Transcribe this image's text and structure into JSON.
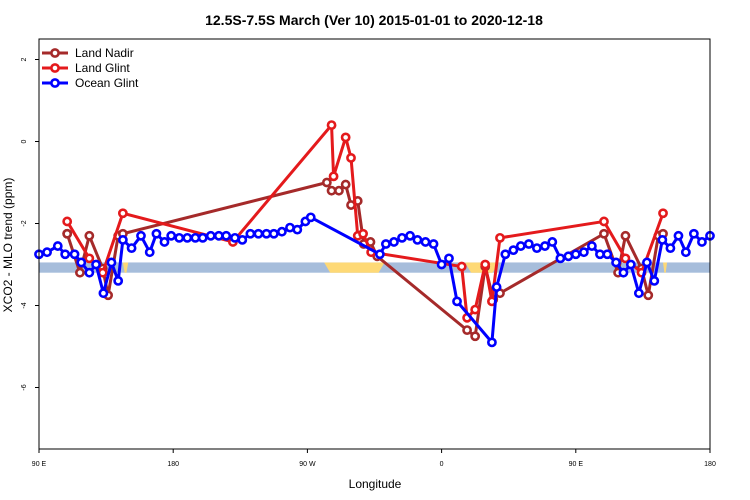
{
  "chart_data": {
    "type": "line",
    "title": "12.5S-7.5S March (Ver 10)   2015-01-01 to 2020-12-18",
    "xlabel": "Longitude",
    "ylabel": "XCO2 - MLO trend (ppm)",
    "xlim": [
      0,
      100
    ],
    "ylim": [
      -7.5,
      2.5
    ],
    "x_ticks": [
      {
        "x": 0,
        "label": "90 E"
      },
      {
        "x": 20,
        "label": "180"
      },
      {
        "x": 40,
        "label": "90 W"
      },
      {
        "x": 60,
        "label": "0"
      },
      {
        "x": 80,
        "label": "90 E"
      },
      {
        "x": 100,
        "label": "180"
      }
    ],
    "y_ticks": [
      {
        "y": 2,
        "label": "2"
      },
      {
        "y": 0,
        "label": "0"
      },
      {
        "y": -2,
        "label": "-2"
      },
      {
        "y": -4,
        "label": "-4"
      },
      {
        "y": -6,
        "label": "-6"
      }
    ],
    "legend_position": "top-left",
    "land_band": {
      "y_range": [
        -3.2,
        -2.95
      ],
      "ocean_color": "#a6bddb",
      "land_color": "#fed976",
      "land_segments": [
        [
          42.5,
          51.5
        ],
        [
          63.5,
          68.5
        ],
        [
          12.5,
          13.3
        ],
        [
          93.0,
          93.6
        ]
      ]
    },
    "series": [
      {
        "name": "Land Nadir",
        "color": "#a52a2a",
        "points": [
          [
            4.2,
            -2.25
          ],
          [
            4.2,
            -2.25
          ],
          [
            6.1,
            -3.2
          ],
          [
            7.5,
            -2.3
          ],
          [
            9.5,
            -3.1
          ],
          [
            10.3,
            -3.75
          ],
          [
            11.8,
            -2.3
          ],
          [
            12.5,
            -2.25
          ],
          [
            42.9,
            -1.0
          ],
          [
            43.6,
            -1.2
          ],
          [
            44.7,
            -1.2
          ],
          [
            45.7,
            -1.05
          ],
          [
            46.5,
            -1.55
          ],
          [
            47.5,
            -1.45
          ],
          [
            48.4,
            -2.5
          ],
          [
            49.4,
            -2.45
          ],
          [
            50.4,
            -2.8
          ],
          [
            63.8,
            -4.6
          ],
          [
            65.0,
            -4.75
          ],
          [
            66.5,
            -3.05
          ],
          [
            67.7,
            -3.85
          ],
          [
            68.7,
            -3.7
          ],
          [
            84.2,
            -2.25
          ],
          [
            86.3,
            -3.2
          ],
          [
            87.4,
            -2.3
          ],
          [
            89.8,
            -3.1
          ],
          [
            90.8,
            -3.75
          ],
          [
            92.3,
            -2.3
          ],
          [
            93.0,
            -2.25
          ]
        ]
      },
      {
        "name": "Land Glint",
        "color": "#e41a1c",
        "points": [
          [
            4.2,
            -1.95
          ],
          [
            7.5,
            -2.85
          ],
          [
            9.5,
            -3.2
          ],
          [
            12.5,
            -1.75
          ],
          [
            28.9,
            -2.45
          ],
          [
            43.6,
            0.4
          ],
          [
            43.9,
            -0.85
          ],
          [
            45.7,
            0.1
          ],
          [
            46.5,
            -0.4
          ],
          [
            47.5,
            -2.3
          ],
          [
            48.3,
            -2.25
          ],
          [
            49.5,
            -2.7
          ],
          [
            63.0,
            -3.05
          ],
          [
            63.8,
            -4.3
          ],
          [
            65.0,
            -4.1
          ],
          [
            66.5,
            -3.0
          ],
          [
            67.5,
            -3.9
          ],
          [
            68.7,
            -2.35
          ],
          [
            84.2,
            -1.95
          ],
          [
            87.4,
            -2.85
          ],
          [
            89.8,
            -3.2
          ],
          [
            93.0,
            -1.75
          ]
        ]
      },
      {
        "name": "Ocean Glint",
        "color": "#0000ff",
        "points": [
          [
            0.0,
            -2.75
          ],
          [
            1.2,
            -2.7
          ],
          [
            2.8,
            -2.55
          ],
          [
            3.9,
            -2.75
          ],
          [
            5.3,
            -2.75
          ],
          [
            6.3,
            -2.95
          ],
          [
            7.5,
            -3.2
          ],
          [
            8.5,
            -3.0
          ],
          [
            9.6,
            -3.7
          ],
          [
            10.8,
            -2.95
          ],
          [
            11.8,
            -3.4
          ],
          [
            12.5,
            -2.4
          ],
          [
            13.8,
            -2.6
          ],
          [
            15.2,
            -2.3
          ],
          [
            16.5,
            -2.7
          ],
          [
            17.5,
            -2.25
          ],
          [
            18.7,
            -2.45
          ],
          [
            19.7,
            -2.3
          ],
          [
            20.9,
            -2.35
          ],
          [
            22.1,
            -2.35
          ],
          [
            23.3,
            -2.35
          ],
          [
            24.4,
            -2.35
          ],
          [
            25.6,
            -2.3
          ],
          [
            26.8,
            -2.3
          ],
          [
            27.9,
            -2.3
          ],
          [
            29.2,
            -2.35
          ],
          [
            30.3,
            -2.4
          ],
          [
            31.5,
            -2.25
          ],
          [
            32.7,
            -2.25
          ],
          [
            33.9,
            -2.25
          ],
          [
            35.0,
            -2.25
          ],
          [
            36.2,
            -2.2
          ],
          [
            37.4,
            -2.1
          ],
          [
            38.5,
            -2.15
          ],
          [
            39.7,
            -1.95
          ],
          [
            40.5,
            -1.85
          ],
          [
            50.8,
            -2.75
          ],
          [
            51.7,
            -2.5
          ],
          [
            52.9,
            -2.45
          ],
          [
            54.1,
            -2.35
          ],
          [
            55.3,
            -2.3
          ],
          [
            56.4,
            -2.4
          ],
          [
            57.6,
            -2.45
          ],
          [
            58.8,
            -2.5
          ],
          [
            60.0,
            -3.0
          ],
          [
            61.1,
            -2.85
          ],
          [
            62.3,
            -3.9
          ],
          [
            67.5,
            -4.9
          ],
          [
            68.2,
            -3.55
          ],
          [
            69.5,
            -2.75
          ],
          [
            70.7,
            -2.65
          ],
          [
            71.8,
            -2.55
          ],
          [
            73.0,
            -2.5
          ],
          [
            74.2,
            -2.6
          ],
          [
            75.4,
            -2.55
          ],
          [
            76.5,
            -2.45
          ],
          [
            77.7,
            -2.85
          ],
          [
            78.9,
            -2.8
          ],
          [
            80.0,
            -2.75
          ],
          [
            81.2,
            -2.7
          ],
          [
            82.4,
            -2.55
          ],
          [
            83.6,
            -2.75
          ],
          [
            84.7,
            -2.75
          ],
          [
            86.0,
            -2.95
          ],
          [
            87.1,
            -3.2
          ],
          [
            88.2,
            -3.0
          ],
          [
            89.4,
            -3.7
          ],
          [
            90.6,
            -2.95
          ],
          [
            91.7,
            -3.4
          ],
          [
            92.9,
            -2.4
          ],
          [
            94.1,
            -2.6
          ],
          [
            95.3,
            -2.3
          ],
          [
            96.4,
            -2.7
          ],
          [
            97.6,
            -2.25
          ],
          [
            98.8,
            -2.45
          ],
          [
            100.0,
            -2.3
          ]
        ]
      }
    ]
  }
}
